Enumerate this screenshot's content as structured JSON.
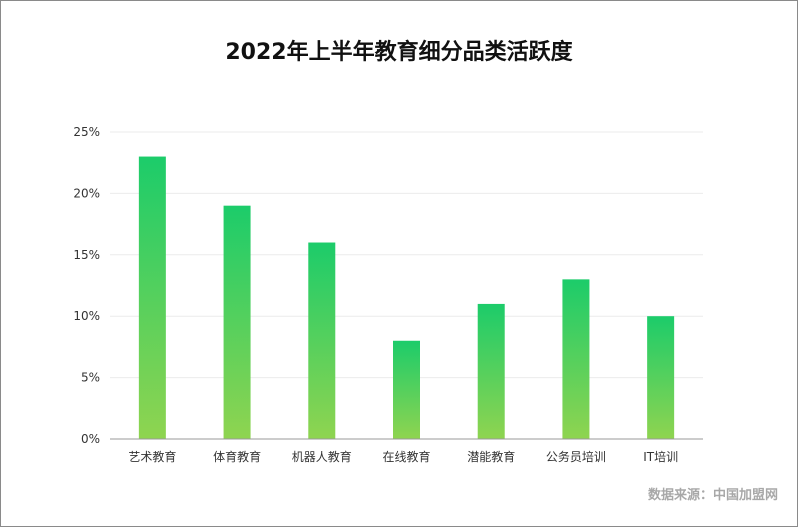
{
  "chart_data": {
    "type": "bar",
    "title": "2022年上半年教育细分品类活跃度",
    "categories": [
      "艺术教育",
      "体育教育",
      "机器人教育",
      "在线教育",
      "潜能教育",
      "公务员培训",
      "IT培训"
    ],
    "values": [
      23,
      19,
      16,
      8,
      11,
      13,
      10
    ],
    "ylim": [
      0,
      25
    ],
    "yticks": [
      0,
      5,
      10,
      15,
      20,
      25
    ],
    "ytick_labels": [
      "0%",
      "5%",
      "10%",
      "15%",
      "20%",
      "25%"
    ],
    "xlabel": "",
    "ylabel": "",
    "grid": true,
    "legend": "none",
    "bar_gradient": {
      "top": "#1ccc6a",
      "bottom": "#8fd450"
    }
  },
  "source_text": "数据来源：中国加盟网"
}
